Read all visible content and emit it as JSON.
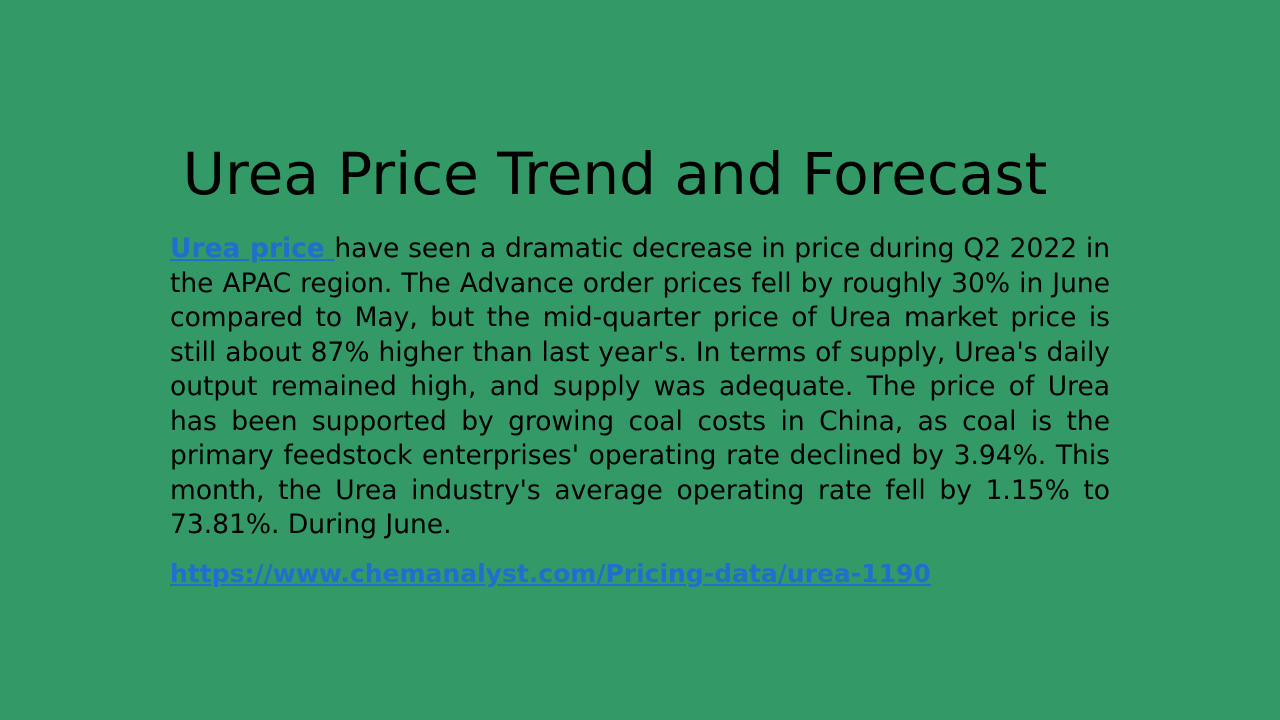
{
  "slide": {
    "title": "Urea Price Trend and Forecast",
    "lead_link": "Urea price ",
    "body": "have seen a dramatic decrease in price during Q2 2022 in the APAC region. The Advance order prices fell by roughly 30% in June compared to May, but the mid-quarter price of Urea market price is still about 87% higher than last year's. In terms of supply, Urea's daily output remained high, and supply was adequate. The price of Urea has been supported by growing coal costs in China, as coal is the primary feedstock enterprises' operating rate declined by 3.94%. This month, the Urea industry's average operating rate fell by 1.15% to 73.81%. During June.",
    "source_url": "https://www.chemanalyst.com/Pricing-data/urea-1190"
  },
  "colors": {
    "background": "#339966",
    "text": "#000000",
    "link": "#1f6fcf"
  }
}
